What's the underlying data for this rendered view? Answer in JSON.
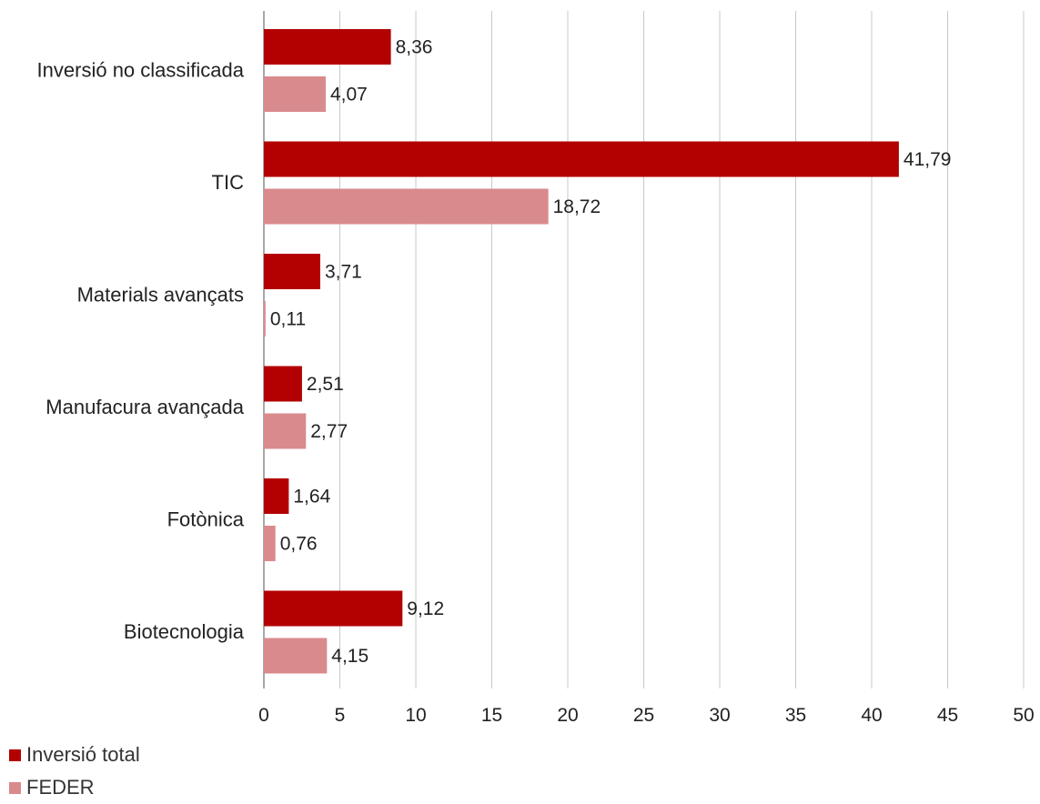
{
  "chart_data": {
    "type": "bar",
    "orientation": "horizontal",
    "categories": [
      "Inversió no classificada",
      "TIC",
      "Materials avançats",
      "Manufacura avançada",
      "Fotònica",
      "Biotecnologia"
    ],
    "series": [
      {
        "name": "Inversió total",
        "color": "#B30000",
        "values": [
          8.36,
          41.79,
          3.71,
          2.51,
          1.64,
          9.12
        ],
        "labels": [
          "8,36",
          "41,79",
          "3,71",
          "2,51",
          "1,64",
          "9,12"
        ]
      },
      {
        "name": "FEDER",
        "color": "#D98A8D",
        "values": [
          4.07,
          18.72,
          0.11,
          2.77,
          0.76,
          4.15
        ],
        "labels": [
          "4,07",
          "18,72",
          "0,11",
          "2,77",
          "0,76",
          "4,15"
        ]
      }
    ],
    "xlim": [
      0,
      50
    ],
    "xticks": [
      0,
      5,
      10,
      15,
      20,
      25,
      30,
      35,
      40,
      45,
      50
    ],
    "grid": "vertical",
    "legend_position": "bottom-left",
    "title": "",
    "xlabel": "",
    "ylabel": ""
  },
  "legend": {
    "items": [
      {
        "label": "Inversió total",
        "color": "#B30000"
      },
      {
        "label": "FEDER",
        "color": "#D98A8D"
      }
    ]
  }
}
